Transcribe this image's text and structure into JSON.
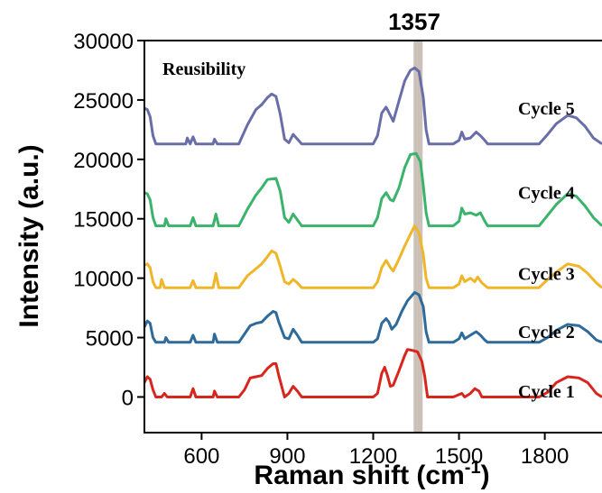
{
  "chart_data": {
    "type": "line",
    "title": "",
    "xlabel": "Raman shift (cm",
    "xlabel_sup": "-1",
    "xlabel_end": ")",
    "ylabel": "Intensity (a.u.)",
    "xlim": [
      400,
      2000
    ],
    "ylim": [
      -3000,
      30000
    ],
    "xticks": [
      600,
      900,
      1200,
      1500,
      1800
    ],
    "yticks": [
      0,
      5000,
      10000,
      15000,
      20000,
      25000,
      30000
    ],
    "annotation": "Reusibility",
    "marker": {
      "x": 1357,
      "label": "1357",
      "color": "#cbc1b8"
    },
    "grid": false,
    "series": [
      {
        "name": "Cycle 1",
        "color": "#d7261e",
        "label_y": 500,
        "points": [
          [
            400,
            1200
          ],
          [
            410,
            1700
          ],
          [
            420,
            1500
          ],
          [
            430,
            600
          ],
          [
            440,
            0
          ],
          [
            460,
            0
          ],
          [
            470,
            300
          ],
          [
            480,
            0
          ],
          [
            560,
            0
          ],
          [
            570,
            700
          ],
          [
            580,
            0
          ],
          [
            640,
            0
          ],
          [
            645,
            500
          ],
          [
            655,
            0
          ],
          [
            730,
            0
          ],
          [
            750,
            600
          ],
          [
            770,
            1600
          ],
          [
            790,
            1700
          ],
          [
            810,
            1800
          ],
          [
            830,
            2400
          ],
          [
            850,
            2800
          ],
          [
            860,
            2800
          ],
          [
            870,
            1800
          ],
          [
            890,
            0
          ],
          [
            905,
            300
          ],
          [
            920,
            900
          ],
          [
            935,
            500
          ],
          [
            950,
            0
          ],
          [
            1200,
            0
          ],
          [
            1215,
            300
          ],
          [
            1230,
            2000
          ],
          [
            1240,
            2500
          ],
          [
            1250,
            1800
          ],
          [
            1260,
            900
          ],
          [
            1270,
            1000
          ],
          [
            1290,
            2200
          ],
          [
            1310,
            3500
          ],
          [
            1320,
            4000
          ],
          [
            1340,
            3900
          ],
          [
            1355,
            3800
          ],
          [
            1370,
            3000
          ],
          [
            1380,
            1800
          ],
          [
            1390,
            0
          ],
          [
            1480,
            0
          ],
          [
            1500,
            200
          ],
          [
            1510,
            300
          ],
          [
            1520,
            0
          ],
          [
            1540,
            300
          ],
          [
            1555,
            700
          ],
          [
            1570,
            500
          ],
          [
            1580,
            0
          ],
          [
            1780,
            0
          ],
          [
            1810,
            400
          ],
          [
            1840,
            1200
          ],
          [
            1880,
            1700
          ],
          [
            1920,
            1600
          ],
          [
            1950,
            1200
          ],
          [
            1980,
            300
          ],
          [
            2000,
            0
          ]
        ]
      },
      {
        "name": "Cycle 2",
        "color": "#2e6a9a",
        "label_y": 5500,
        "points": [
          [
            400,
            5900
          ],
          [
            410,
            6400
          ],
          [
            420,
            6200
          ],
          [
            430,
            5000
          ],
          [
            440,
            4600
          ],
          [
            470,
            4600
          ],
          [
            475,
            5000
          ],
          [
            485,
            4600
          ],
          [
            560,
            4600
          ],
          [
            570,
            5200
          ],
          [
            580,
            4600
          ],
          [
            640,
            4600
          ],
          [
            645,
            5300
          ],
          [
            655,
            4600
          ],
          [
            730,
            4600
          ],
          [
            750,
            5300
          ],
          [
            770,
            6000
          ],
          [
            790,
            6200
          ],
          [
            810,
            6300
          ],
          [
            830,
            6800
          ],
          [
            850,
            7200
          ],
          [
            860,
            7100
          ],
          [
            870,
            6300
          ],
          [
            890,
            5000
          ],
          [
            905,
            4900
          ],
          [
            920,
            5700
          ],
          [
            935,
            5200
          ],
          [
            950,
            4600
          ],
          [
            1200,
            4600
          ],
          [
            1215,
            4900
          ],
          [
            1230,
            6200
          ],
          [
            1245,
            6600
          ],
          [
            1255,
            6300
          ],
          [
            1265,
            5700
          ],
          [
            1280,
            6100
          ],
          [
            1300,
            7200
          ],
          [
            1320,
            8100
          ],
          [
            1345,
            8800
          ],
          [
            1360,
            8600
          ],
          [
            1375,
            7600
          ],
          [
            1385,
            5500
          ],
          [
            1395,
            4600
          ],
          [
            1480,
            4600
          ],
          [
            1500,
            4900
          ],
          [
            1510,
            5400
          ],
          [
            1520,
            4900
          ],
          [
            1540,
            5200
          ],
          [
            1560,
            5500
          ],
          [
            1575,
            5200
          ],
          [
            1590,
            4800
          ],
          [
            1600,
            4600
          ],
          [
            1780,
            4600
          ],
          [
            1810,
            5000
          ],
          [
            1840,
            5600
          ],
          [
            1880,
            6100
          ],
          [
            1920,
            6000
          ],
          [
            1950,
            5500
          ],
          [
            1980,
            4800
          ],
          [
            2000,
            4600
          ]
        ]
      },
      {
        "name": "Cycle 3",
        "color": "#f0b62a",
        "label_y": 10400,
        "points": [
          [
            400,
            11100
          ],
          [
            410,
            11200
          ],
          [
            420,
            10900
          ],
          [
            430,
            9700
          ],
          [
            440,
            9200
          ],
          [
            455,
            9200
          ],
          [
            460,
            9900
          ],
          [
            470,
            9200
          ],
          [
            560,
            9200
          ],
          [
            570,
            9800
          ],
          [
            580,
            9200
          ],
          [
            640,
            9200
          ],
          [
            650,
            10400
          ],
          [
            660,
            9200
          ],
          [
            730,
            9200
          ],
          [
            760,
            10200
          ],
          [
            790,
            10800
          ],
          [
            810,
            11200
          ],
          [
            830,
            11800
          ],
          [
            845,
            12300
          ],
          [
            860,
            12100
          ],
          [
            875,
            11000
          ],
          [
            890,
            9700
          ],
          [
            905,
            9500
          ],
          [
            920,
            9900
          ],
          [
            935,
            9600
          ],
          [
            950,
            9200
          ],
          [
            1200,
            9200
          ],
          [
            1215,
            9700
          ],
          [
            1230,
            10900
          ],
          [
            1245,
            11500
          ],
          [
            1260,
            10900
          ],
          [
            1270,
            10600
          ],
          [
            1290,
            11600
          ],
          [
            1310,
            12700
          ],
          [
            1330,
            13700
          ],
          [
            1345,
            14400
          ],
          [
            1360,
            13800
          ],
          [
            1375,
            12000
          ],
          [
            1385,
            10000
          ],
          [
            1395,
            9200
          ],
          [
            1480,
            9200
          ],
          [
            1500,
            9500
          ],
          [
            1510,
            10200
          ],
          [
            1520,
            9700
          ],
          [
            1540,
            10000
          ],
          [
            1555,
            9700
          ],
          [
            1565,
            10100
          ],
          [
            1580,
            9600
          ],
          [
            1600,
            9200
          ],
          [
            1780,
            9200
          ],
          [
            1810,
            9900
          ],
          [
            1840,
            10500
          ],
          [
            1880,
            11200
          ],
          [
            1920,
            11000
          ],
          [
            1950,
            10400
          ],
          [
            1980,
            9600
          ],
          [
            2000,
            9200
          ]
        ]
      },
      {
        "name": "Cycle 4",
        "color": "#3bb36b",
        "label_y": 17200,
        "points": [
          [
            400,
            17200
          ],
          [
            410,
            17100
          ],
          [
            420,
            16600
          ],
          [
            430,
            15100
          ],
          [
            440,
            14400
          ],
          [
            470,
            14400
          ],
          [
            475,
            15000
          ],
          [
            485,
            14400
          ],
          [
            560,
            14400
          ],
          [
            570,
            15100
          ],
          [
            580,
            14400
          ],
          [
            640,
            14400
          ],
          [
            650,
            15400
          ],
          [
            660,
            14400
          ],
          [
            730,
            14400
          ],
          [
            760,
            15800
          ],
          [
            790,
            17000
          ],
          [
            810,
            17600
          ],
          [
            830,
            18300
          ],
          [
            860,
            18400
          ],
          [
            875,
            17300
          ],
          [
            890,
            15100
          ],
          [
            905,
            14700
          ],
          [
            920,
            15400
          ],
          [
            935,
            14900
          ],
          [
            950,
            14400
          ],
          [
            1200,
            14400
          ],
          [
            1215,
            15100
          ],
          [
            1230,
            16700
          ],
          [
            1245,
            17200
          ],
          [
            1260,
            16600
          ],
          [
            1270,
            16500
          ],
          [
            1290,
            17600
          ],
          [
            1310,
            19300
          ],
          [
            1330,
            20400
          ],
          [
            1350,
            20500
          ],
          [
            1365,
            19800
          ],
          [
            1375,
            17800
          ],
          [
            1385,
            15500
          ],
          [
            1395,
            14400
          ],
          [
            1480,
            14400
          ],
          [
            1500,
            14800
          ],
          [
            1510,
            15900
          ],
          [
            1520,
            15400
          ],
          [
            1540,
            15500
          ],
          [
            1560,
            15300
          ],
          [
            1575,
            15500
          ],
          [
            1590,
            14800
          ],
          [
            1600,
            14400
          ],
          [
            1780,
            14400
          ],
          [
            1810,
            15300
          ],
          [
            1840,
            16200
          ],
          [
            1880,
            17100
          ],
          [
            1910,
            16900
          ],
          [
            1940,
            16100
          ],
          [
            1970,
            15100
          ],
          [
            2000,
            14400
          ]
        ]
      },
      {
        "name": "Cycle 5",
        "color": "#6a6ea8",
        "label_y": 24300,
        "points": [
          [
            400,
            24300
          ],
          [
            410,
            24200
          ],
          [
            420,
            23600
          ],
          [
            430,
            22000
          ],
          [
            440,
            21300
          ],
          [
            545,
            21300
          ],
          [
            550,
            21800
          ],
          [
            560,
            21300
          ],
          [
            570,
            21900
          ],
          [
            580,
            21300
          ],
          [
            640,
            21300
          ],
          [
            645,
            21700
          ],
          [
            655,
            21300
          ],
          [
            730,
            21300
          ],
          [
            760,
            22900
          ],
          [
            790,
            24200
          ],
          [
            810,
            24600
          ],
          [
            830,
            25200
          ],
          [
            845,
            25500
          ],
          [
            860,
            25300
          ],
          [
            875,
            23800
          ],
          [
            890,
            21700
          ],
          [
            905,
            21400
          ],
          [
            920,
            22100
          ],
          [
            935,
            21700
          ],
          [
            950,
            21300
          ],
          [
            1200,
            21300
          ],
          [
            1215,
            22000
          ],
          [
            1230,
            23900
          ],
          [
            1245,
            24400
          ],
          [
            1260,
            23700
          ],
          [
            1270,
            23200
          ],
          [
            1290,
            24900
          ],
          [
            1310,
            26600
          ],
          [
            1330,
            27500
          ],
          [
            1345,
            27700
          ],
          [
            1360,
            27400
          ],
          [
            1375,
            25200
          ],
          [
            1385,
            22500
          ],
          [
            1395,
            21300
          ],
          [
            1480,
            21300
          ],
          [
            1500,
            21600
          ],
          [
            1510,
            22300
          ],
          [
            1520,
            21700
          ],
          [
            1540,
            21800
          ],
          [
            1560,
            22300
          ],
          [
            1575,
            22000
          ],
          [
            1590,
            21600
          ],
          [
            1600,
            21300
          ],
          [
            1780,
            21300
          ],
          [
            1810,
            22100
          ],
          [
            1840,
            23000
          ],
          [
            1880,
            23700
          ],
          [
            1910,
            23500
          ],
          [
            1940,
            22800
          ],
          [
            1970,
            21800
          ],
          [
            2000,
            21300
          ]
        ]
      }
    ]
  }
}
